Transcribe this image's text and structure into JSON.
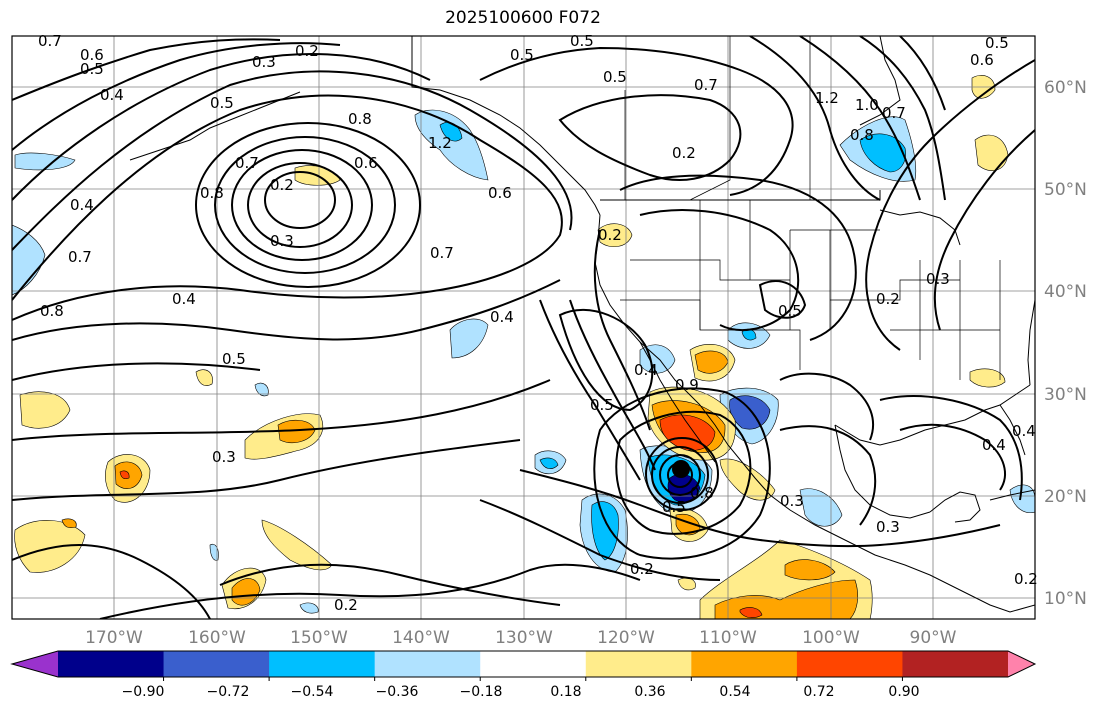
{
  "title": "2025100600 F072",
  "lat_labels": [
    "60°N",
    "50°N",
    "40°N",
    "30°N",
    "20°N",
    "10°N"
  ],
  "lon_labels": [
    "170°W",
    "160°W",
    "150°W",
    "140°W",
    "130°W",
    "120°W",
    "110°W",
    "100°W",
    "90°W"
  ],
  "colorbar": {
    "tick_labels": [
      "−0.90",
      "−0.72",
      "−0.54",
      "−0.36",
      "−0.18",
      "0.18",
      "0.36",
      "0.54",
      "0.72",
      "0.90"
    ],
    "colors": [
      "#9a32cd",
      "#00008b",
      "#3a5fcd",
      "#00bfff",
      "#b0e2ff",
      "#ffffff",
      "#ffec8b",
      "#ffa500",
      "#ff4500",
      "#b22222",
      "#ff82ab"
    ]
  },
  "contour_labels": [
    "0.7",
    "0.6",
    "0.5",
    "0.3",
    "0.2",
    "0.4",
    "0.5",
    "0.5",
    "0.5",
    "0.6",
    "0.6",
    "0.7",
    "1.2",
    "0.4",
    "0.5",
    "0.8",
    "1.2",
    "0.8",
    "0.7",
    "0.2",
    "0.8",
    "0.7",
    "0.4",
    "0.6",
    "0.3",
    "0.2",
    "0.2",
    "0.4",
    "0.7",
    "0.8",
    "0.4",
    "0.5",
    "0.4",
    "0.5",
    "0.5",
    "0.3",
    "0.2",
    "0.2",
    "0.5",
    "0.3",
    "0.3",
    "0.4",
    "0.2",
    "0.3",
    "1.0",
    "0.9",
    "0.8",
    "0.7",
    "0.5",
    "0.2"
  ],
  "storm_marker": "black-dot"
}
